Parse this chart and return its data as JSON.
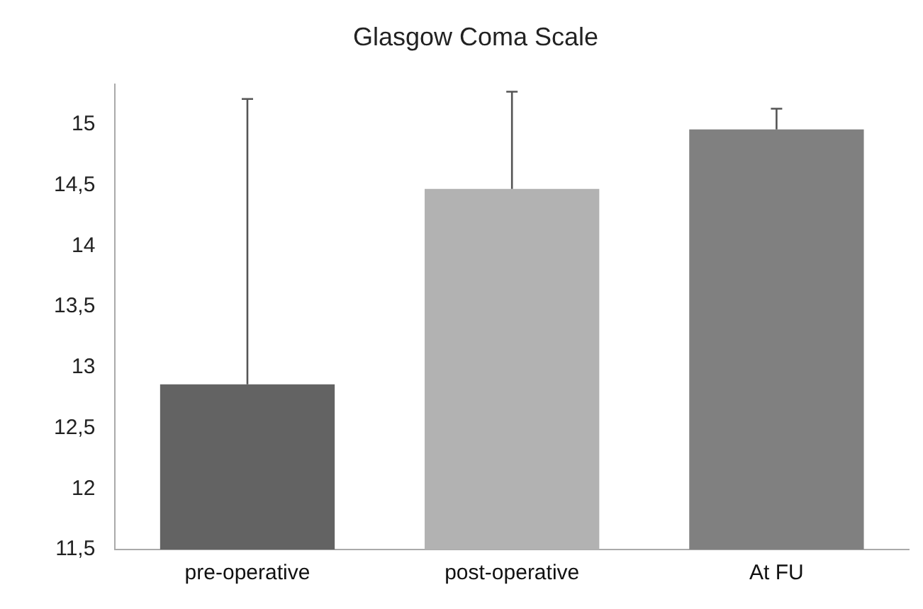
{
  "chart_data": {
    "type": "bar",
    "title": "Glasgow Coma Scale",
    "categories": [
      "pre-operative",
      "post-operative",
      "At FU"
    ],
    "values": [
      12.86,
      14.47,
      14.96
    ],
    "colors": [
      "#636363",
      "#b2b2b2",
      "#808080"
    ],
    "errors": [
      [
        12.86,
        15.21
      ],
      [
        14.47,
        15.27
      ],
      [
        14.96,
        15.13
      ]
    ],
    "ylim": [
      11.5,
      15.33
    ],
    "yticks": [
      {
        "value": 11.5,
        "label": "11,5"
      },
      12,
      {
        "value": 12.5,
        "label": "12,5"
      },
      13,
      {
        "value": 13.5,
        "label": "13,5"
      },
      14,
      {
        "value": 14.5,
        "label": "14,5"
      },
      15
    ],
    "grid": false,
    "legend": false
  }
}
